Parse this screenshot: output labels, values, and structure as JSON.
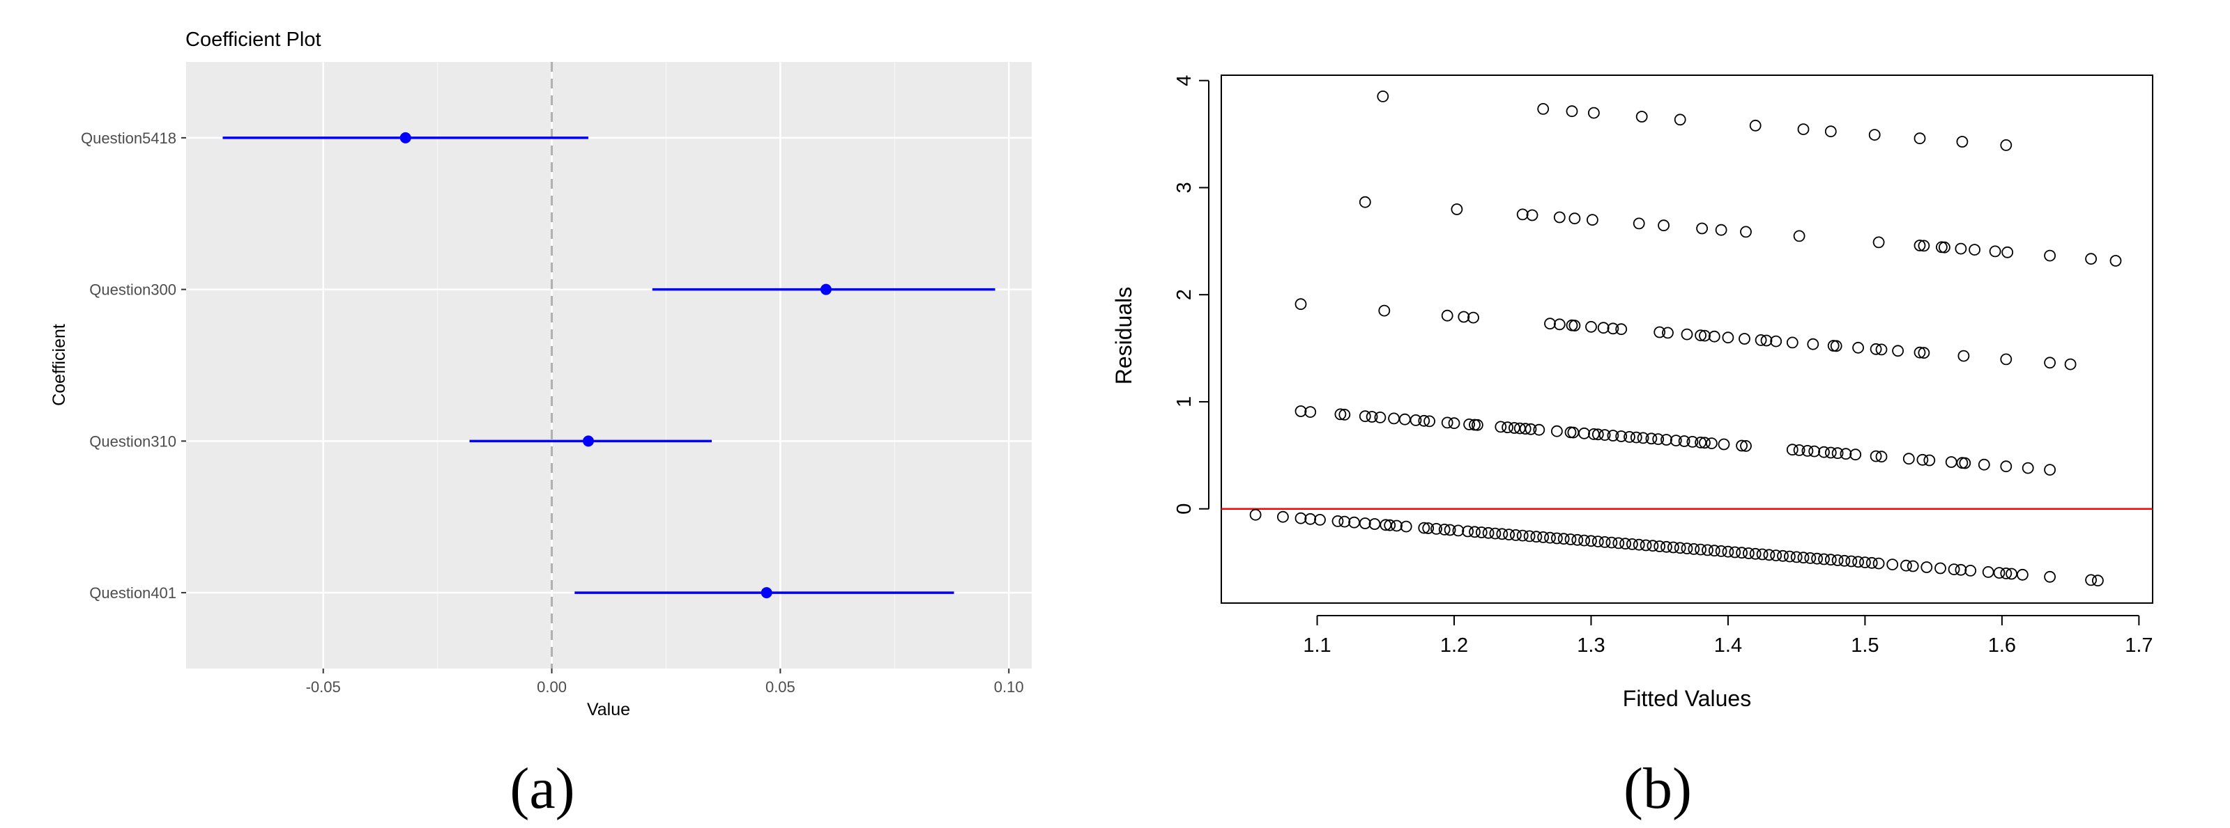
{
  "panels": {
    "a_label": "(a)",
    "b_label": "(b)"
  },
  "chart_data": [
    {
      "type": "scatter",
      "chart_style": "coefficient-plot (point estimates with horizontal interval lines)",
      "title": "Coefficient Plot",
      "xlabel": "Value",
      "ylabel": "Coefficient",
      "xlim": [
        -0.08,
        0.105
      ],
      "xticks": [
        -0.05,
        0.0,
        0.05,
        0.1
      ],
      "xtick_labels": [
        "-0.05",
        "0.00",
        "0.05",
        "0.10"
      ],
      "reference_line": {
        "x": 0,
        "style": "dashed",
        "color": "#b0b0b0"
      },
      "grid": true,
      "background": "#ebebeb",
      "series_color": "#0000ff",
      "categories": [
        "Question5418",
        "Question300",
        "Question310",
        "Question401"
      ],
      "estimates": [
        -0.032,
        0.06,
        0.008,
        0.047
      ],
      "lower": [
        -0.072,
        0.022,
        -0.018,
        0.005
      ],
      "upper": [
        0.008,
        0.097,
        0.035,
        0.088
      ]
    },
    {
      "type": "scatter",
      "xlabel": "Fitted Values",
      "ylabel": "Residuals",
      "xlim": [
        1.03,
        1.71
      ],
      "ylim": [
        -0.88,
        4.05
      ],
      "xticks": [
        1.1,
        1.2,
        1.3,
        1.4,
        1.5,
        1.6,
        1.7
      ],
      "xtick_labels": [
        "1.1",
        "1.2",
        "1.3",
        "1.4",
        "1.5",
        "1.6",
        "1.7"
      ],
      "yticks": [
        0,
        1,
        2,
        3,
        4
      ],
      "ytick_labels": [
        "0",
        "1",
        "2",
        "3",
        "4"
      ],
      "grid": false,
      "reference_line": {
        "y": 0,
        "color": "#ff0000"
      },
      "marker": "open-circle",
      "bands": [
        {
          "offset": 5,
          "x": [
            1.148,
            1.265,
            1.286,
            1.302,
            1.337,
            1.365,
            1.42,
            1.455,
            1.475,
            1.507,
            1.54,
            1.571,
            1.603
          ]
        },
        {
          "offset": 4,
          "x": [
            1.135,
            1.202,
            1.25,
            1.257,
            1.277,
            1.288,
            1.301,
            1.335,
            1.353,
            1.381,
            1.395,
            1.413,
            1.452,
            1.51,
            1.54,
            1.543,
            1.556,
            1.558,
            1.57,
            1.58,
            1.595,
            1.604,
            1.635,
            1.665,
            1.683
          ]
        },
        {
          "offset": 3,
          "x": [
            1.088,
            1.149,
            1.195,
            1.207,
            1.214,
            1.27,
            1.277,
            1.286,
            1.288,
            1.3,
            1.309,
            1.316,
            1.322,
            1.35,
            1.356,
            1.37,
            1.38,
            1.383,
            1.39,
            1.4,
            1.412,
            1.424,
            1.428,
            1.435,
            1.447,
            1.462,
            1.477,
            1.479,
            1.495,
            1.508,
            1.512,
            1.524,
            1.54,
            1.543,
            1.572,
            1.603,
            1.635,
            1.65
          ]
        },
        {
          "offset": 2,
          "x": [
            1.088,
            1.095,
            1.117,
            1.12,
            1.135,
            1.14,
            1.146,
            1.156,
            1.164,
            1.172,
            1.178,
            1.182,
            1.195,
            1.2,
            1.211,
            1.215,
            1.217,
            1.234,
            1.239,
            1.244,
            1.248,
            1.252,
            1.256,
            1.262,
            1.275,
            1.285,
            1.287,
            1.295,
            1.302,
            1.305,
            1.31,
            1.316,
            1.322,
            1.328,
            1.333,
            1.338,
            1.344,
            1.349,
            1.355,
            1.362,
            1.368,
            1.374,
            1.38,
            1.383,
            1.388,
            1.397,
            1.41,
            1.413,
            1.447,
            1.452,
            1.458,
            1.463,
            1.47,
            1.475,
            1.48,
            1.486,
            1.493,
            1.508,
            1.512,
            1.532,
            1.542,
            1.547,
            1.563,
            1.571,
            1.573,
            1.587,
            1.603,
            1.619,
            1.635
          ]
        },
        {
          "offset": 1,
          "x": [
            1.055,
            1.075,
            1.088,
            1.095,
            1.102,
            1.115,
            1.12,
            1.127,
            1.135,
            1.142,
            1.15,
            1.153,
            1.158,
            1.165,
            1.178,
            1.181,
            1.187,
            1.193,
            1.197,
            1.203,
            1.21,
            1.215,
            1.22,
            1.225,
            1.23,
            1.235,
            1.24,
            1.245,
            1.25,
            1.255,
            1.26,
            1.265,
            1.27,
            1.275,
            1.28,
            1.285,
            1.29,
            1.295,
            1.3,
            1.305,
            1.31,
            1.315,
            1.32,
            1.325,
            1.33,
            1.335,
            1.34,
            1.345,
            1.35,
            1.355,
            1.36,
            1.365,
            1.37,
            1.375,
            1.38,
            1.385,
            1.39,
            1.395,
            1.4,
            1.405,
            1.41,
            1.415,
            1.42,
            1.425,
            1.43,
            1.435,
            1.44,
            1.445,
            1.45,
            1.455,
            1.46,
            1.465,
            1.47,
            1.475,
            1.48,
            1.485,
            1.49,
            1.495,
            1.5,
            1.505,
            1.51,
            1.52,
            1.53,
            1.535,
            1.545,
            1.555,
            1.565,
            1.57,
            1.577,
            1.59,
            1.598,
            1.603,
            1.607,
            1.615,
            1.635,
            1.665,
            1.67
          ]
        }
      ]
    }
  ]
}
